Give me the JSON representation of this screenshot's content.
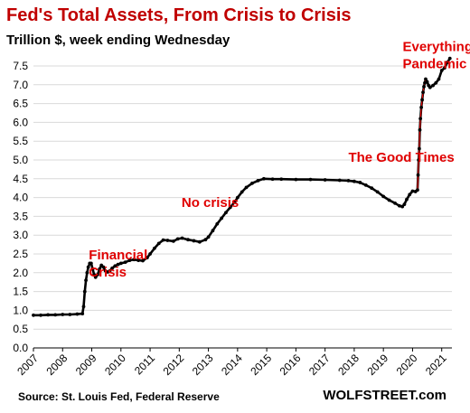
{
  "title": "Fed's Total Assets, From Crisis to Crisis",
  "subtitle": "Trillion $, week ending Wednesday",
  "source": "Source: St. Louis Fed, Federal Reserve",
  "brand": "WOLFSTREET.com",
  "colors": {
    "title": "#c00000",
    "annotation": "#e00000",
    "line": "#000000",
    "points": "#000000",
    "grid": "#d9d9d9"
  },
  "chart_data": {
    "type": "line",
    "title": "Fed's Total Assets, From Crisis to Crisis",
    "subtitle": "Trillion $, week ending Wednesday",
    "xlabel": "",
    "ylabel": "",
    "xlim": [
      2007,
      2021.35
    ],
    "ylim": [
      0,
      7.5
    ],
    "grid": "horizontal",
    "y_ticks": [
      "0.0",
      "0.5",
      "1.0",
      "1.5",
      "2.0",
      "2.5",
      "3.0",
      "3.5",
      "4.0",
      "4.5",
      "5.0",
      "5.5",
      "6.0",
      "6.5",
      "7.0",
      "7.5"
    ],
    "x_ticks": [
      "2007",
      "2008",
      "2009",
      "2010",
      "2011",
      "2012",
      "2013",
      "2014",
      "2015",
      "2016",
      "2017",
      "2018",
      "2019",
      "2020",
      "2021"
    ],
    "series": [
      {
        "points": [
          [
            2007.0,
            0.87
          ],
          [
            2007.25,
            0.87
          ],
          [
            2007.5,
            0.88
          ],
          [
            2007.75,
            0.88
          ],
          [
            2008.0,
            0.89
          ],
          [
            2008.25,
            0.89
          ],
          [
            2008.5,
            0.9
          ],
          [
            2008.68,
            0.91
          ],
          [
            2008.72,
            1.1
          ],
          [
            2008.76,
            1.5
          ],
          [
            2008.8,
            1.8
          ],
          [
            2008.84,
            2.0
          ],
          [
            2008.88,
            2.15
          ],
          [
            2008.93,
            2.25
          ],
          [
            2008.98,
            2.25
          ],
          [
            2009.03,
            2.1
          ],
          [
            2009.08,
            1.95
          ],
          [
            2009.13,
            1.88
          ],
          [
            2009.2,
            1.95
          ],
          [
            2009.27,
            2.1
          ],
          [
            2009.33,
            2.2
          ],
          [
            2009.4,
            2.15
          ],
          [
            2009.47,
            2.05
          ],
          [
            2009.55,
            2.02
          ],
          [
            2009.62,
            2.05
          ],
          [
            2009.7,
            2.12
          ],
          [
            2009.8,
            2.18
          ],
          [
            2009.9,
            2.22
          ],
          [
            2010.0,
            2.25
          ],
          [
            2010.15,
            2.28
          ],
          [
            2010.3,
            2.33
          ],
          [
            2010.45,
            2.35
          ],
          [
            2010.6,
            2.33
          ],
          [
            2010.75,
            2.32
          ],
          [
            2010.9,
            2.4
          ],
          [
            2011.0,
            2.5
          ],
          [
            2011.15,
            2.65
          ],
          [
            2011.3,
            2.78
          ],
          [
            2011.45,
            2.87
          ],
          [
            2011.6,
            2.86
          ],
          [
            2011.8,
            2.84
          ],
          [
            2011.95,
            2.9
          ],
          [
            2012.1,
            2.92
          ],
          [
            2012.3,
            2.88
          ],
          [
            2012.5,
            2.85
          ],
          [
            2012.7,
            2.82
          ],
          [
            2012.9,
            2.88
          ],
          [
            2013.0,
            2.95
          ],
          [
            2013.15,
            3.12
          ],
          [
            2013.3,
            3.3
          ],
          [
            2013.45,
            3.45
          ],
          [
            2013.6,
            3.6
          ],
          [
            2013.75,
            3.74
          ],
          [
            2013.9,
            3.88
          ],
          [
            2014.0,
            4.0
          ],
          [
            2014.15,
            4.15
          ],
          [
            2014.3,
            4.27
          ],
          [
            2014.5,
            4.38
          ],
          [
            2014.7,
            4.45
          ],
          [
            2014.9,
            4.5
          ],
          [
            2015.2,
            4.49
          ],
          [
            2015.5,
            4.49
          ],
          [
            2016.0,
            4.48
          ],
          [
            2016.5,
            4.48
          ],
          [
            2017.0,
            4.47
          ],
          [
            2017.5,
            4.46
          ],
          [
            2017.8,
            4.45
          ],
          [
            2018.0,
            4.43
          ],
          [
            2018.2,
            4.4
          ],
          [
            2018.4,
            4.33
          ],
          [
            2018.6,
            4.25
          ],
          [
            2018.8,
            4.15
          ],
          [
            2019.0,
            4.03
          ],
          [
            2019.2,
            3.93
          ],
          [
            2019.4,
            3.85
          ],
          [
            2019.55,
            3.78
          ],
          [
            2019.65,
            3.76
          ],
          [
            2019.72,
            3.82
          ],
          [
            2019.8,
            3.95
          ],
          [
            2019.9,
            4.08
          ],
          [
            2020.0,
            4.17
          ],
          [
            2020.1,
            4.16
          ],
          [
            2020.17,
            4.2
          ],
          [
            2020.19,
            4.6
          ],
          [
            2020.21,
            5.0
          ],
          [
            2020.23,
            5.3
          ],
          [
            2020.25,
            5.8
          ],
          [
            2020.27,
            6.1
          ],
          [
            2020.3,
            6.4
          ],
          [
            2020.33,
            6.6
          ],
          [
            2020.36,
            6.8
          ],
          [
            2020.39,
            6.95
          ],
          [
            2020.42,
            7.05
          ],
          [
            2020.45,
            7.15
          ],
          [
            2020.5,
            7.08
          ],
          [
            2020.55,
            6.98
          ],
          [
            2020.6,
            6.93
          ],
          [
            2020.7,
            6.98
          ],
          [
            2020.8,
            7.05
          ],
          [
            2020.9,
            7.15
          ],
          [
            2021.0,
            7.38
          ],
          [
            2021.1,
            7.45
          ],
          [
            2021.2,
            7.6
          ],
          [
            2021.28,
            7.7
          ]
        ]
      }
    ],
    "annotations": [
      {
        "lines": [
          "Financial",
          "Crisis"
        ],
        "x": 2008.9,
        "y": 2.35
      },
      {
        "lines": [
          "No crisis"
        ],
        "x": 2012.08,
        "y": 3.75
      },
      {
        "lines": [
          "The Good Times"
        ],
        "x": 2017.8,
        "y": 4.95
      },
      {
        "lines": [
          "Everything Mania",
          "Pandemic"
        ],
        "x": 2019.66,
        "y": 7.9
      }
    ]
  }
}
